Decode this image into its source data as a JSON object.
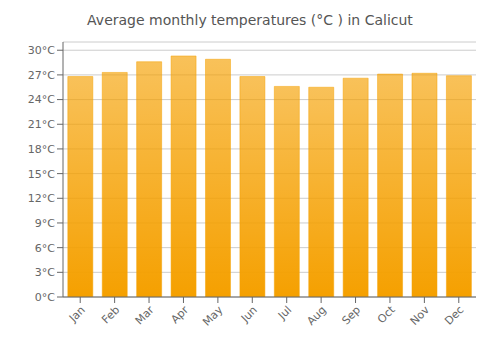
{
  "chart_data": {
    "type": "bar",
    "title": "Average monthly temperatures (°C ) in Calicut",
    "categories": [
      "Jan",
      "Feb",
      "Mar",
      "Apr",
      "May",
      "Jun",
      "Jul",
      "Aug",
      "Sep",
      "Oct",
      "Nov",
      "Dec"
    ],
    "values": [
      26.8,
      27.3,
      28.6,
      29.3,
      28.9,
      26.8,
      25.6,
      25.5,
      26.6,
      27.1,
      27.2,
      26.9
    ],
    "color": "#F5A000",
    "ylim": [
      0,
      31
    ],
    "yticks": [
      {
        "value": 0,
        "label": "0°C"
      },
      {
        "value": 3,
        "label": "3°C"
      },
      {
        "value": 6,
        "label": "6°C"
      },
      {
        "value": 9,
        "label": "9°C"
      },
      {
        "value": 12,
        "label": "12°C"
      },
      {
        "value": 15,
        "label": "15°C"
      },
      {
        "value": 18,
        "label": "18°C"
      },
      {
        "value": 21,
        "label": "21°C"
      },
      {
        "value": 24,
        "label": "24°C"
      },
      {
        "value": 27,
        "label": "27°C"
      },
      {
        "value": 30,
        "label": "30°C"
      }
    ],
    "grid": true
  }
}
